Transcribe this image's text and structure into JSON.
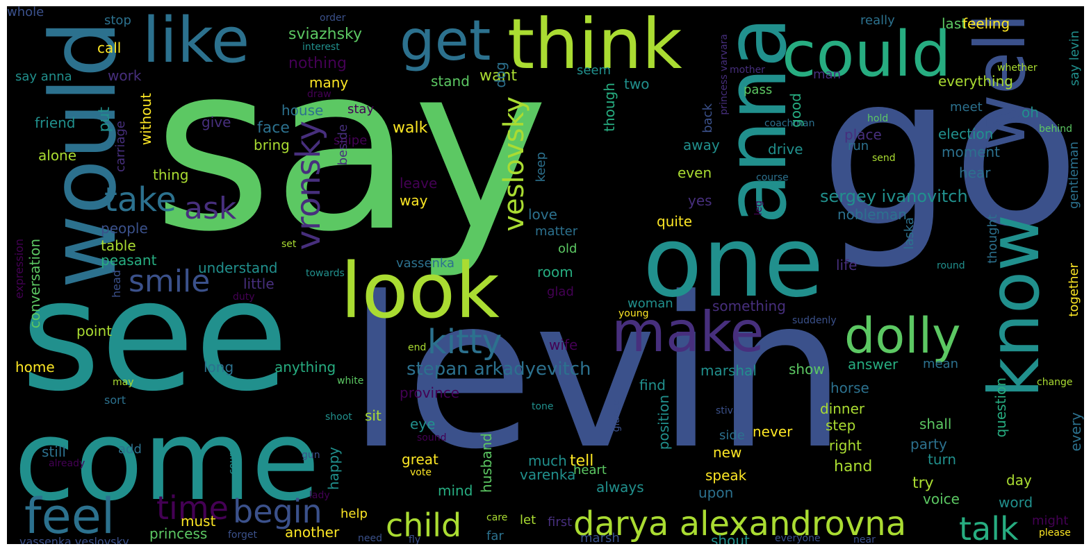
{
  "palette": {
    "background": "#000000",
    "purple": "#440154",
    "indigo": "#472f7d",
    "blue": "#3b518b",
    "steel": "#2c718e",
    "teal": "#21908d",
    "jade": "#27ad81",
    "green": "#5cc863",
    "lime": "#aadc32",
    "yellow": "#fde725"
  },
  "words": [
    {
      "text": "say",
      "size": 330,
      "color": "#5cc863"
    },
    {
      "text": "go",
      "size": 300,
      "color": "#3b518b"
    },
    {
      "text": "levin",
      "size": 300,
      "color": "#3b518b"
    },
    {
      "text": "see",
      "size": 220,
      "color": "#21908d"
    },
    {
      "text": "come",
      "size": 160,
      "color": "#21908d"
    },
    {
      "text": "one",
      "size": 140,
      "color": "#21908d"
    },
    {
      "text": "would",
      "size": 130,
      "color": "#2c718e"
    },
    {
      "text": "anna",
      "size": 120,
      "color": "#21908d"
    },
    {
      "text": "look",
      "size": 110,
      "color": "#aadc32"
    },
    {
      "text": "think",
      "size": 100,
      "color": "#aadc32"
    },
    {
      "text": "well",
      "size": 100,
      "color": "#3b518b"
    },
    {
      "text": "know",
      "size": 100,
      "color": "#21908d"
    },
    {
      "text": "like",
      "size": 90,
      "color": "#2c718e"
    },
    {
      "text": "could",
      "size": 90,
      "color": "#27ad81"
    },
    {
      "text": "get",
      "size": 80,
      "color": "#2c718e"
    },
    {
      "text": "make",
      "size": 80,
      "color": "#472f7d"
    },
    {
      "text": "dolly",
      "size": 70,
      "color": "#5cc863"
    },
    {
      "text": "feel",
      "size": 70,
      "color": "#2c718e"
    },
    {
      "text": "darya alexandrovna",
      "size": 48,
      "color": "#aadc32"
    },
    {
      "text": "take",
      "size": 48,
      "color": "#2c718e"
    },
    {
      "text": "kitty",
      "size": 48,
      "color": "#2c718e"
    },
    {
      "text": "vronsky",
      "size": 48,
      "color": "#472f7d"
    },
    {
      "text": "begin",
      "size": 46,
      "color": "#3b518b"
    },
    {
      "text": "child",
      "size": 46,
      "color": "#aadc32"
    },
    {
      "text": "talk",
      "size": 46,
      "color": "#27ad81"
    },
    {
      "text": "time",
      "size": 46,
      "color": "#440154"
    },
    {
      "text": "ask",
      "size": 44,
      "color": "#472f7d"
    },
    {
      "text": "smile",
      "size": 44,
      "color": "#3b518b"
    },
    {
      "text": "veslovsky",
      "size": 40,
      "color": "#aadc32"
    },
    {
      "text": "stepan arkadyevitch",
      "size": 26,
      "color": "#2c718e"
    },
    {
      "text": "sergey ivanovitch",
      "size": 24,
      "color": "#21908d"
    },
    {
      "text": "sviazhsky",
      "size": 22,
      "color": "#5cc863"
    },
    {
      "text": "nothing",
      "size": 22,
      "color": "#440154"
    },
    {
      "text": "face",
      "size": 22,
      "color": "#2c718e"
    },
    {
      "text": "walk",
      "size": 22,
      "color": "#fde725"
    },
    {
      "text": "want",
      "size": 22,
      "color": "#aadc32"
    },
    {
      "text": "stand",
      "size": 20,
      "color": "#5cc863"
    },
    {
      "text": "dog",
      "size": 20,
      "color": "#2c718e"
    },
    {
      "text": "many",
      "size": 20,
      "color": "#fde725"
    },
    {
      "text": "work",
      "size": 20,
      "color": "#472f7d"
    },
    {
      "text": "house",
      "size": 20,
      "color": "#2c718e"
    },
    {
      "text": "give",
      "size": 20,
      "color": "#472f7d"
    },
    {
      "text": "stay",
      "size": 18,
      "color": "#440154"
    },
    {
      "text": "snipe",
      "size": 18,
      "color": "#440154"
    },
    {
      "text": "bring",
      "size": 20,
      "color": "#aadc32"
    },
    {
      "text": "beside",
      "size": 18,
      "color": "#472f7d"
    },
    {
      "text": "put",
      "size": 22,
      "color": "#21908d"
    },
    {
      "text": "carriage",
      "size": 18,
      "color": "#472f7d"
    },
    {
      "text": "without",
      "size": 20,
      "color": "#fde725"
    },
    {
      "text": "friend",
      "size": 20,
      "color": "#21908d"
    },
    {
      "text": "alone",
      "size": 20,
      "color": "#aadc32"
    },
    {
      "text": "thing",
      "size": 20,
      "color": "#aadc32"
    },
    {
      "text": "conversation",
      "size": 20,
      "color": "#5cc863"
    },
    {
      "text": "people",
      "size": 20,
      "color": "#3b518b"
    },
    {
      "text": "table",
      "size": 20,
      "color": "#aadc32"
    },
    {
      "text": "peasant",
      "size": 20,
      "color": "#27ad81"
    },
    {
      "text": "understand",
      "size": 20,
      "color": "#21908d"
    },
    {
      "text": "little",
      "size": 20,
      "color": "#472f7d"
    },
    {
      "text": "set",
      "size": 14,
      "color": "#aadc32"
    },
    {
      "text": "towards",
      "size": 14,
      "color": "#21908d"
    },
    {
      "text": "head",
      "size": 16,
      "color": "#3b518b"
    },
    {
      "text": "duty",
      "size": 14,
      "color": "#440154"
    },
    {
      "text": "expression",
      "size": 16,
      "color": "#440154"
    },
    {
      "text": "point",
      "size": 20,
      "color": "#aadc32"
    },
    {
      "text": "home",
      "size": 20,
      "color": "#fde725"
    },
    {
      "text": "long",
      "size": 20,
      "color": "#2c718e"
    },
    {
      "text": "anything",
      "size": 20,
      "color": "#27ad81"
    },
    {
      "text": "may",
      "size": 14,
      "color": "#aadc32"
    },
    {
      "text": "white",
      "size": 14,
      "color": "#5cc863"
    },
    {
      "text": "sort",
      "size": 16,
      "color": "#2c718e"
    },
    {
      "text": "province",
      "size": 20,
      "color": "#440154"
    },
    {
      "text": "sit",
      "size": 20,
      "color": "#aadc32"
    },
    {
      "text": "still",
      "size": 20,
      "color": "#2c718e"
    },
    {
      "text": "add",
      "size": 18,
      "color": "#2c718e"
    },
    {
      "text": "already",
      "size": 14,
      "color": "#440154"
    },
    {
      "text": "shoot",
      "size": 14,
      "color": "#21908d"
    },
    {
      "text": "sound",
      "size": 14,
      "color": "#440154"
    },
    {
      "text": "gun",
      "size": 14,
      "color": "#3b518b"
    },
    {
      "text": "count",
      "size": 14,
      "color": "#21908d"
    },
    {
      "text": "eye",
      "size": 20,
      "color": "#21908d"
    },
    {
      "text": "happy",
      "size": 20,
      "color": "#21908d"
    },
    {
      "text": "husband",
      "size": 20,
      "color": "#5cc863"
    },
    {
      "text": "great",
      "size": 20,
      "color": "#fde725"
    },
    {
      "text": "vote",
      "size": 14,
      "color": "#fde725"
    },
    {
      "text": "mind",
      "size": 20,
      "color": "#27ad81"
    },
    {
      "text": "lady",
      "size": 14,
      "color": "#440154"
    },
    {
      "text": "must",
      "size": 20,
      "color": "#fde725"
    },
    {
      "text": "help",
      "size": 18,
      "color": "#fde725"
    },
    {
      "text": "care",
      "size": 14,
      "color": "#aadc32"
    },
    {
      "text": "another",
      "size": 20,
      "color": "#fde725"
    },
    {
      "text": "princess",
      "size": 20,
      "color": "#5cc863"
    },
    {
      "text": "forget",
      "size": 14,
      "color": "#3b518b"
    },
    {
      "text": "need",
      "size": 14,
      "color": "#3b518b"
    },
    {
      "text": "fly",
      "size": 14,
      "color": "#3b518b"
    },
    {
      "text": "vassenka veslovsky",
      "size": 16,
      "color": "#3b518b"
    },
    {
      "text": "say anna",
      "size": 18,
      "color": "#21908d"
    },
    {
      "text": "call",
      "size": 20,
      "color": "#fde725"
    },
    {
      "text": "stop",
      "size": 18,
      "color": "#2c718e"
    },
    {
      "text": "order",
      "size": 14,
      "color": "#3b518b"
    },
    {
      "text": "interest",
      "size": 14,
      "color": "#21908d"
    },
    {
      "text": "draw",
      "size": 14,
      "color": "#440154"
    },
    {
      "text": "man",
      "size": 18,
      "color": "#472f7d"
    },
    {
      "text": "really",
      "size": 18,
      "color": "#2c718e"
    },
    {
      "text": "last",
      "size": 20,
      "color": "#5cc863"
    },
    {
      "text": "feeling",
      "size": 20,
      "color": "#fde725"
    },
    {
      "text": "mother",
      "size": 14,
      "color": "#472f7d"
    },
    {
      "text": "whether",
      "size": 14,
      "color": "#aadc32"
    },
    {
      "text": "say levin",
      "size": 18,
      "color": "#21908d"
    },
    {
      "text": "princess varvara",
      "size": 14,
      "color": "#472f7d"
    },
    {
      "text": "everything",
      "size": 20,
      "color": "#aadc32"
    },
    {
      "text": "pass",
      "size": 18,
      "color": "#5cc863"
    },
    {
      "text": "coachman",
      "size": 14,
      "color": "#2c718e"
    },
    {
      "text": "meet",
      "size": 18,
      "color": "#2c718e"
    },
    {
      "text": "hold",
      "size": 14,
      "color": "#5cc863"
    },
    {
      "text": "oh",
      "size": 20,
      "color": "#21908d"
    },
    {
      "text": "behind",
      "size": 14,
      "color": "#5cc863"
    },
    {
      "text": "election",
      "size": 20,
      "color": "#21908d"
    },
    {
      "text": "send",
      "size": 14,
      "color": "#aadc32"
    },
    {
      "text": "moment",
      "size": 20,
      "color": "#2c718e"
    },
    {
      "text": "gentleman",
      "size": 18,
      "color": "#2c718e"
    },
    {
      "text": "course",
      "size": 14,
      "color": "#2c718e"
    },
    {
      "text": "hear",
      "size": 20,
      "color": "#2c718e"
    },
    {
      "text": "leg",
      "size": 14,
      "color": "#440154"
    },
    {
      "text": "laska",
      "size": 18,
      "color": "#2c718e"
    },
    {
      "text": "nobleman",
      "size": 20,
      "color": "#2c718e"
    },
    {
      "text": "round",
      "size": 14,
      "color": "#21908d"
    },
    {
      "text": "thought",
      "size": 18,
      "color": "#2c718e"
    },
    {
      "text": "life",
      "size": 20,
      "color": "#472f7d"
    },
    {
      "text": "together",
      "size": 18,
      "color": "#fde725"
    },
    {
      "text": "suddenly",
      "size": 14,
      "color": "#3b518b"
    },
    {
      "text": "seem",
      "size": 18,
      "color": "#21908d"
    },
    {
      "text": "two",
      "size": 20,
      "color": "#21908d"
    },
    {
      "text": "though",
      "size": 20,
      "color": "#27ad81"
    },
    {
      "text": "back",
      "size": 18,
      "color": "#3b518b"
    },
    {
      "text": "good",
      "size": 20,
      "color": "#27ad81"
    },
    {
      "text": "place",
      "size": 20,
      "color": "#472f7d"
    },
    {
      "text": "run",
      "size": 18,
      "color": "#2c718e"
    },
    {
      "text": "drive",
      "size": 20,
      "color": "#21908d"
    },
    {
      "text": "away",
      "size": 20,
      "color": "#21908d"
    },
    {
      "text": "even",
      "size": 20,
      "color": "#aadc32"
    },
    {
      "text": "leave",
      "size": 20,
      "color": "#440154"
    },
    {
      "text": "keep",
      "size": 18,
      "color": "#2c718e"
    },
    {
      "text": "yes",
      "size": 20,
      "color": "#472f7d"
    },
    {
      "text": "way",
      "size": 20,
      "color": "#fde725"
    },
    {
      "text": "love",
      "size": 20,
      "color": "#2c718e"
    },
    {
      "text": "quite",
      "size": 20,
      "color": "#fde725"
    },
    {
      "text": "matter",
      "size": 18,
      "color": "#2c718e"
    },
    {
      "text": "old",
      "size": 18,
      "color": "#5cc863"
    },
    {
      "text": "vassenka",
      "size": 18,
      "color": "#2c718e"
    },
    {
      "text": "room",
      "size": 20,
      "color": "#27ad81"
    },
    {
      "text": "glad",
      "size": 18,
      "color": "#440154"
    },
    {
      "text": "something",
      "size": 20,
      "color": "#472f7d"
    },
    {
      "text": "woman",
      "size": 18,
      "color": "#21908d"
    },
    {
      "text": "young",
      "size": 14,
      "color": "#fde725"
    },
    {
      "text": "end",
      "size": 14,
      "color": "#aadc32"
    },
    {
      "text": "wife",
      "size": 20,
      "color": "#440154"
    },
    {
      "text": "marshal",
      "size": 20,
      "color": "#21908d"
    },
    {
      "text": "show",
      "size": 20,
      "color": "#5cc863"
    },
    {
      "text": "answer",
      "size": 20,
      "color": "#27ad81"
    },
    {
      "text": "mean",
      "size": 18,
      "color": "#2c718e"
    },
    {
      "text": "question",
      "size": 20,
      "color": "#27ad81"
    },
    {
      "text": "find",
      "size": 20,
      "color": "#21908d"
    },
    {
      "text": "change",
      "size": 14,
      "color": "#aadc32"
    },
    {
      "text": "horse",
      "size": 20,
      "color": "#2c718e"
    },
    {
      "text": "glance",
      "size": 14,
      "color": "#3b518b"
    },
    {
      "text": "tone",
      "size": 14,
      "color": "#21908d"
    },
    {
      "text": "dinner",
      "size": 20,
      "color": "#aadc32"
    },
    {
      "text": "stiva",
      "size": 14,
      "color": "#3b518b"
    },
    {
      "text": "position",
      "size": 20,
      "color": "#21908d"
    },
    {
      "text": "never",
      "size": 20,
      "color": "#fde725"
    },
    {
      "text": "step",
      "size": 20,
      "color": "#aadc32"
    },
    {
      "text": "shall",
      "size": 20,
      "color": "#5cc863"
    },
    {
      "text": "every",
      "size": 20,
      "color": "#2c718e"
    },
    {
      "text": "side",
      "size": 18,
      "color": "#2c718e"
    },
    {
      "text": "new",
      "size": 20,
      "color": "#fde725"
    },
    {
      "text": "right",
      "size": 20,
      "color": "#aadc32"
    },
    {
      "text": "party",
      "size": 20,
      "color": "#2c718e"
    },
    {
      "text": "turn",
      "size": 20,
      "color": "#21908d"
    },
    {
      "text": "much",
      "size": 20,
      "color": "#21908d"
    },
    {
      "text": "tell",
      "size": 22,
      "color": "#fde725"
    },
    {
      "text": "hand",
      "size": 22,
      "color": "#aadc32"
    },
    {
      "text": "speak",
      "size": 20,
      "color": "#fde725"
    },
    {
      "text": "varenka",
      "size": 20,
      "color": "#21908d"
    },
    {
      "text": "heart",
      "size": 18,
      "color": "#5cc863"
    },
    {
      "text": "try",
      "size": 22,
      "color": "#aadc32"
    },
    {
      "text": "day",
      "size": 20,
      "color": "#aadc32"
    },
    {
      "text": "always",
      "size": 20,
      "color": "#21908d"
    },
    {
      "text": "upon",
      "size": 20,
      "color": "#2c718e"
    },
    {
      "text": "word",
      "size": 20,
      "color": "#21908d"
    },
    {
      "text": "voice",
      "size": 20,
      "color": "#5cc863"
    },
    {
      "text": "might",
      "size": 18,
      "color": "#440154"
    },
    {
      "text": "first",
      "size": 18,
      "color": "#472f7d"
    },
    {
      "text": "let",
      "size": 18,
      "color": "#aadc32"
    },
    {
      "text": "far",
      "size": 18,
      "color": "#2c718e"
    },
    {
      "text": "marsh",
      "size": 18,
      "color": "#3b518b"
    },
    {
      "text": "everyone",
      "size": 14,
      "color": "#3b518b"
    },
    {
      "text": "shout",
      "size": 20,
      "color": "#21908d"
    },
    {
      "text": "near",
      "size": 14,
      "color": "#3b518b"
    },
    {
      "text": "please",
      "size": 14,
      "color": "#fde725"
    },
    {
      "text": "whole",
      "size": 18,
      "color": "#3b518b"
    }
  ]
}
